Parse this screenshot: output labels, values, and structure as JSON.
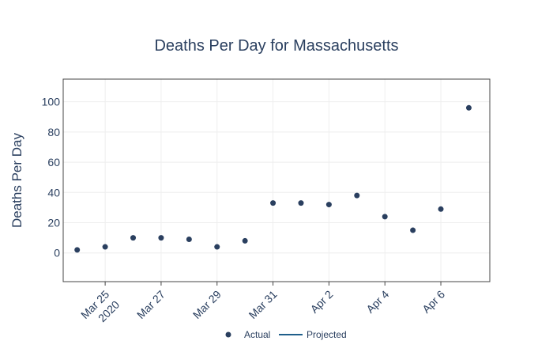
{
  "chart_data": {
    "type": "scatter",
    "title": "Deaths Per Day for Massachusetts",
    "xlabel": "",
    "ylabel": "Deaths Per Day",
    "x_ticks": [
      {
        "date": "2020-03-25",
        "label": "Mar 25",
        "sublabel": "2020"
      },
      {
        "date": "2020-03-27",
        "label": "Mar 27",
        "sublabel": ""
      },
      {
        "date": "2020-03-29",
        "label": "Mar 29",
        "sublabel": ""
      },
      {
        "date": "2020-03-31",
        "label": "Mar 31",
        "sublabel": ""
      },
      {
        "date": "2020-04-02",
        "label": "Apr 2",
        "sublabel": ""
      },
      {
        "date": "2020-04-04",
        "label": "Apr 4",
        "sublabel": ""
      },
      {
        "date": "2020-04-06",
        "label": "Apr 6",
        "sublabel": ""
      }
    ],
    "y_ticks": [
      0,
      20,
      40,
      60,
      80,
      100
    ],
    "ylim": [
      -19,
      115
    ],
    "xlim": [
      "2020-03-23 12:00",
      "2020-04-07 18:00"
    ],
    "grid": true,
    "legend_position": "bottom-center",
    "series": [
      {
        "name": "Actual",
        "mode": "markers",
        "color": "#2a3f5f",
        "points": [
          {
            "x": "2020-03-24",
            "y": 2
          },
          {
            "x": "2020-03-25",
            "y": 4
          },
          {
            "x": "2020-03-26",
            "y": 10
          },
          {
            "x": "2020-03-27",
            "y": 10
          },
          {
            "x": "2020-03-28",
            "y": 9
          },
          {
            "x": "2020-03-29",
            "y": 4
          },
          {
            "x": "2020-03-30",
            "y": 8
          },
          {
            "x": "2020-03-31",
            "y": 33
          },
          {
            "x": "2020-04-01",
            "y": 33
          },
          {
            "x": "2020-04-02",
            "y": 32
          },
          {
            "x": "2020-04-03",
            "y": 38
          },
          {
            "x": "2020-04-04",
            "y": 24
          },
          {
            "x": "2020-04-05",
            "y": 15
          },
          {
            "x": "2020-04-06",
            "y": 29
          },
          {
            "x": "2020-04-07",
            "y": 96
          }
        ]
      },
      {
        "name": "Projected",
        "mode": "lines",
        "color": "#1f5f8b",
        "points": []
      }
    ]
  }
}
